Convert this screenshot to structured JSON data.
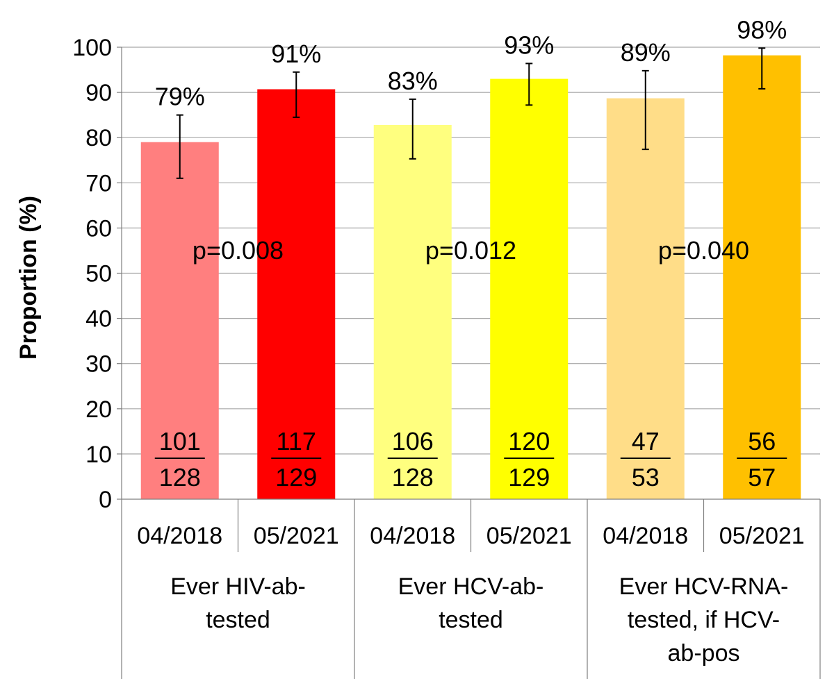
{
  "chart_data": {
    "type": "bar",
    "ylabel": "Proportion (%)",
    "ylim": [
      0,
      100
    ],
    "yticks": [
      0,
      10,
      20,
      30,
      40,
      50,
      60,
      70,
      80,
      90,
      100
    ],
    "grid": true,
    "groups": [
      {
        "label": "Ever HIV-ab-tested",
        "label_lines": [
          "Ever HIV-ab-",
          "tested"
        ],
        "p_value": "p=0.008"
      },
      {
        "label": "Ever HCV-ab-tested",
        "label_lines": [
          "Ever HCV-ab-",
          "tested"
        ],
        "p_value": "p=0.012"
      },
      {
        "label": "Ever HCV-RNA-tested, if HCV-ab-pos",
        "label_lines": [
          "Ever HCV-RNA-",
          "tested, if HCV-",
          "ab-pos"
        ],
        "p_value": "p=0.040"
      }
    ],
    "bars": [
      {
        "group": 0,
        "category": "04/2018",
        "value": 79,
        "label": "79%",
        "ci": [
          71,
          85
        ],
        "numerator": "101",
        "denominator": "128",
        "color": "#ff7f7f"
      },
      {
        "group": 0,
        "category": "05/2021",
        "value": 90.7,
        "label": "91%",
        "ci": [
          84.5,
          94.5
        ],
        "numerator": "117",
        "denominator": "129",
        "color": "#ff0000"
      },
      {
        "group": 1,
        "category": "04/2018",
        "value": 82.8,
        "label": "83%",
        "ci": [
          75.3,
          88.5
        ],
        "numerator": "106",
        "denominator": "128",
        "color": "#ffff7f"
      },
      {
        "group": 1,
        "category": "05/2021",
        "value": 93,
        "label": "93%",
        "ci": [
          87.2,
          96.4
        ],
        "numerator": "120",
        "denominator": "129",
        "color": "#ffff00"
      },
      {
        "group": 2,
        "category": "04/2018",
        "value": 88.7,
        "label": "89%",
        "ci": [
          77.4,
          94.8
        ],
        "numerator": "47",
        "denominator": "53",
        "color": "#ffdd88"
      },
      {
        "group": 2,
        "category": "05/2021",
        "value": 98.2,
        "label": "98%",
        "ci": [
          90.8,
          99.8
        ],
        "numerator": "56",
        "denominator": "57",
        "color": "#ffc000"
      }
    ]
  }
}
